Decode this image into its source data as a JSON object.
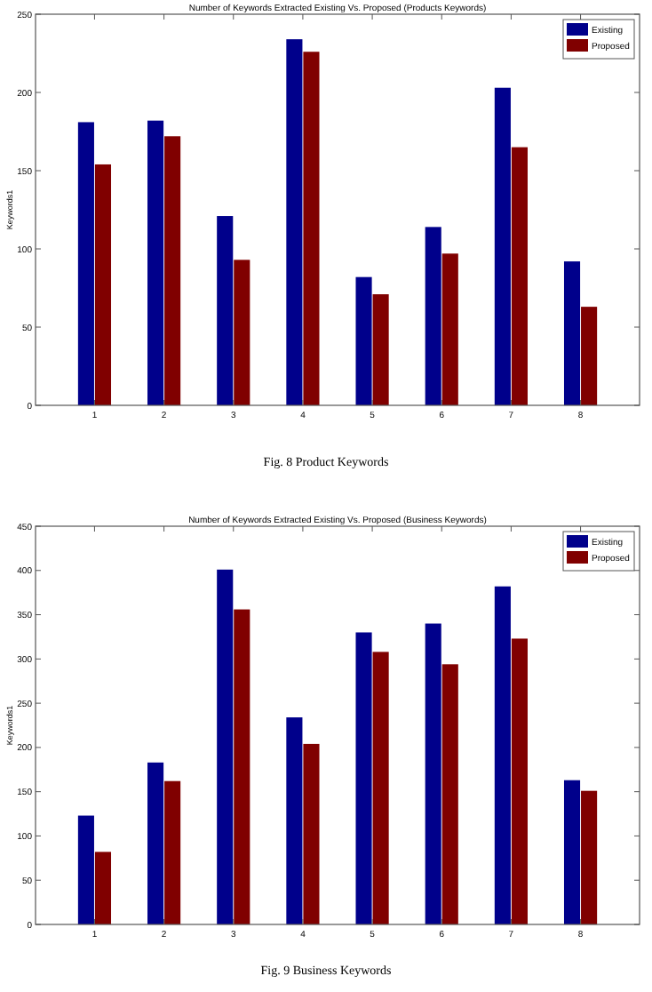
{
  "chart_data": [
    {
      "type": "bar",
      "title": "Number of Keywords Extracted Existing Vs. Proposed (Products Keywords)",
      "ylabel": "Keywords1",
      "categories": [
        "1",
        "2",
        "3",
        "4",
        "5",
        "6",
        "7",
        "8"
      ],
      "series": [
        {
          "name": "Existing",
          "color": "#00008b",
          "values": [
            181,
            182,
            121,
            234,
            82,
            114,
            203,
            92
          ]
        },
        {
          "name": "Proposed",
          "color": "#800000",
          "values": [
            154,
            172,
            93,
            226,
            71,
            97,
            165,
            63
          ]
        }
      ],
      "ylim": [
        0,
        250
      ],
      "yticks": [
        0,
        50,
        100,
        150,
        200,
        250
      ],
      "legend": "top right",
      "annotations": [
        "Fig. 8 Product Keywords"
      ]
    },
    {
      "type": "bar",
      "title": "Number of Keywords Extracted Existing Vs. Proposed (Business Keywords)",
      "ylabel": "Keywords1",
      "categories": [
        "1",
        "2",
        "3",
        "4",
        "5",
        "6",
        "7",
        "8"
      ],
      "series": [
        {
          "name": "Existing",
          "color": "#00008b",
          "values": [
            123,
            183,
            401,
            234,
            330,
            340,
            382,
            163
          ]
        },
        {
          "name": "Proposed",
          "color": "#800000",
          "values": [
            82,
            162,
            356,
            204,
            308,
            294,
            323,
            151
          ]
        }
      ],
      "ylim": [
        0,
        450
      ],
      "yticks": [
        0,
        50,
        100,
        150,
        200,
        250,
        300,
        350,
        400,
        450
      ],
      "legend": "top right",
      "annotations": [
        "Fig. 9 Business Keywords"
      ]
    }
  ]
}
